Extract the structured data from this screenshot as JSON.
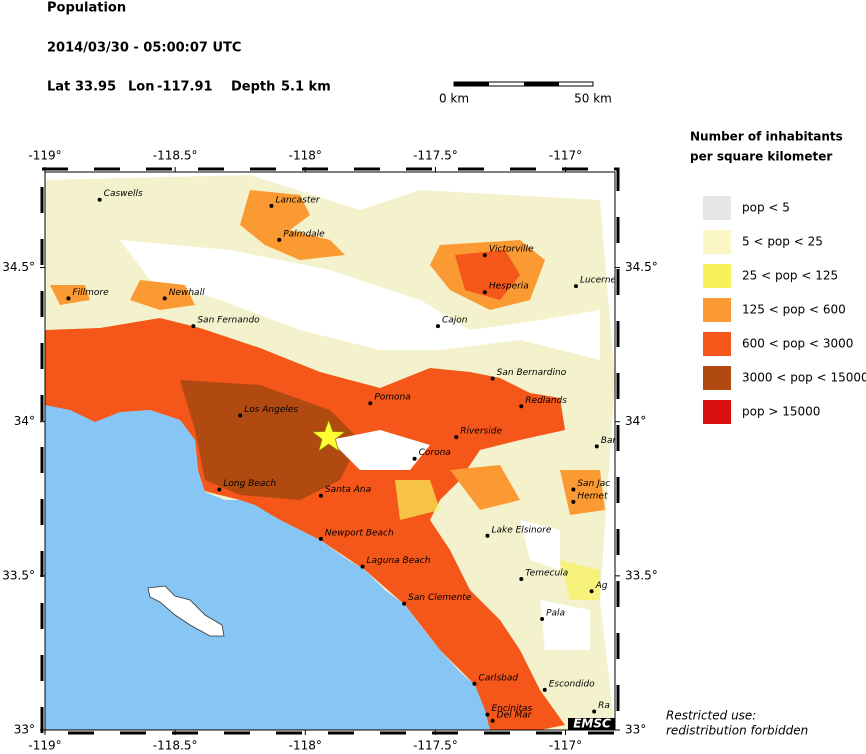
{
  "header": {
    "title": "Population",
    "datetime": "2014/03/30 - 05:00:07 UTC",
    "lat_label": "Lat",
    "lat": 33.95,
    "lon_label": "Lon",
    "lon": -117.91,
    "depth_label": "Depth",
    "depth": "5.1 km"
  },
  "scale_bar": {
    "start": "0 km",
    "end": "50 km"
  },
  "map": {
    "lon_lim": [
      -119,
      -116.81
    ],
    "lat_lim": [
      33,
      34.81
    ],
    "lon_ticks": [
      {
        "value": -119,
        "label": "-119°"
      },
      {
        "value": -118.5,
        "label": "-118.5°"
      },
      {
        "value": -118,
        "label": "-118°"
      },
      {
        "value": -117.5,
        "label": "-117.5°"
      },
      {
        "value": -117,
        "label": "-117°"
      }
    ],
    "lat_ticks": [
      {
        "value": 33,
        "label": "33°"
      },
      {
        "value": 33.5,
        "label": "33.5°"
      },
      {
        "value": 34,
        "label": "34°"
      },
      {
        "value": 34.5,
        "label": "34.5°"
      }
    ],
    "cities": [
      {
        "name": "Caswells",
        "lon": -118.79,
        "lat": 34.72
      },
      {
        "name": "Lancaster",
        "lon": -118.13,
        "lat": 34.7
      },
      {
        "name": "Palmdale",
        "lon": -118.1,
        "lat": 34.59
      },
      {
        "name": "Fillmore",
        "lon": -118.91,
        "lat": 34.4
      },
      {
        "name": "Newhall",
        "lon": -118.54,
        "lat": 34.4
      },
      {
        "name": "San Fernando",
        "lon": -118.43,
        "lat": 34.31
      },
      {
        "name": "Cajon",
        "lon": -117.49,
        "lat": 34.31
      },
      {
        "name": "Victorville",
        "lon": -117.31,
        "lat": 34.54
      },
      {
        "name": "Hesperia",
        "lon": -117.31,
        "lat": 34.42
      },
      {
        "name": "Lucerne",
        "lon": -116.96,
        "lat": 34.44
      },
      {
        "name": "San Bernardino",
        "lon": -117.28,
        "lat": 34.14
      },
      {
        "name": "Redlands",
        "lon": -117.17,
        "lat": 34.05
      },
      {
        "name": "Pomona",
        "lon": -117.75,
        "lat": 34.06
      },
      {
        "name": "Los Angeles",
        "lon": -118.25,
        "lat": 34.02
      },
      {
        "name": "Riverside",
        "lon": -117.42,
        "lat": 33.95
      },
      {
        "name": "Corona",
        "lon": -117.58,
        "lat": 33.88
      },
      {
        "name": "Long Beach",
        "lon": -118.33,
        "lat": 33.78
      },
      {
        "name": "Santa Ana",
        "lon": -117.94,
        "lat": 33.76
      },
      {
        "name": "Newport Beach",
        "lon": -117.94,
        "lat": 33.62
      },
      {
        "name": "Laguna Beach",
        "lon": -117.78,
        "lat": 33.53
      },
      {
        "name": "San Clemente",
        "lon": -117.62,
        "lat": 33.41
      },
      {
        "name": "Lake Elsinore",
        "lon": -117.3,
        "lat": 33.63
      },
      {
        "name": "Temecula",
        "lon": -117.17,
        "lat": 33.49
      },
      {
        "name": "San Jac",
        "lon": -116.97,
        "lat": 33.78
      },
      {
        "name": "Hemet",
        "lon": -116.97,
        "lat": 33.74
      },
      {
        "name": "Pala",
        "lon": -117.09,
        "lat": 33.36
      },
      {
        "name": "Carlsbad",
        "lon": -117.35,
        "lat": 33.15
      },
      {
        "name": "Escondido",
        "lon": -117.08,
        "lat": 33.13
      },
      {
        "name": "Encinitas",
        "lon": -117.3,
        "lat": 33.05
      },
      {
        "name": "Del Mar",
        "lon": -117.28,
        "lat": 33.03
      },
      {
        "name": "Bar",
        "lon": -116.88,
        "lat": 33.92
      },
      {
        "name": "Ag",
        "lon": -116.9,
        "lat": 33.45
      },
      {
        "name": "Ra",
        "lon": -116.89,
        "lat": 33.06
      }
    ]
  },
  "legend": {
    "title": [
      "Number of inhabitants",
      "per square kilometer"
    ],
    "items": [
      {
        "label": "pop < 5",
        "color": "#e6e6e6"
      },
      {
        "label": "5 < pop < 25",
        "color": "#fbf7c5"
      },
      {
        "label": "25 < pop < 125",
        "color": "#f8f25a"
      },
      {
        "label": "125 < pop < 600",
        "color": "#fb9a33"
      },
      {
        "label": "600 < pop < 3000",
        "color": "#f5561a"
      },
      {
        "label": "3000 < pop < 15000",
        "color": "#b04a10"
      },
      {
        "label": "pop > 15000",
        "color": "#d81010"
      }
    ]
  },
  "footer": {
    "logo": "EMSC",
    "notice": [
      "Restricted use:",
      "redistribution forbidden"
    ]
  }
}
